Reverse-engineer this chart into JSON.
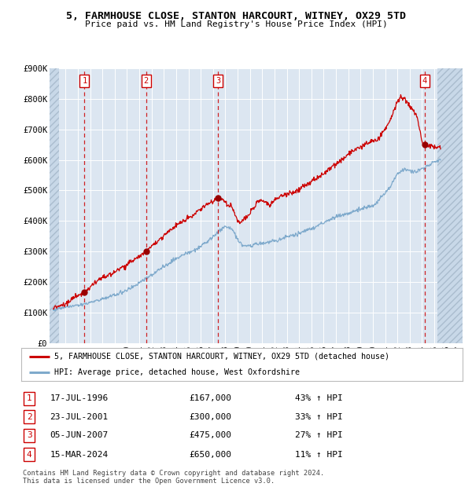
{
  "title": "5, FARMHOUSE CLOSE, STANTON HARCOURT, WITNEY, OX29 5TD",
  "subtitle": "Price paid vs. HM Land Registry's House Price Index (HPI)",
  "sale_prices": [
    167000,
    300000,
    475000,
    650000
  ],
  "sale_labels": [
    "1",
    "2",
    "3",
    "4"
  ],
  "sale_pct": [
    "43% ↑ HPI",
    "33% ↑ HPI",
    "27% ↑ HPI",
    "11% ↑ HPI"
  ],
  "sale_dates_str": [
    "17-JUL-1996",
    "23-JUL-2001",
    "05-JUN-2007",
    "15-MAR-2024"
  ],
  "sale_prices_str": [
    "£167,000",
    "£300,000",
    "£475,000",
    "£650,000"
  ],
  "red_line_color": "#cc0000",
  "blue_line_color": "#7faacc",
  "plot_bg_color": "#dce6f1",
  "grid_color": "#ffffff",
  "dashed_line_color": "#cc0000",
  "marker_color": "#990000",
  "ylim": [
    0,
    900000
  ],
  "yticks": [
    0,
    100000,
    200000,
    300000,
    400000,
    500000,
    600000,
    700000,
    800000,
    900000
  ],
  "ytick_labels": [
    "£0",
    "£100K",
    "£200K",
    "£300K",
    "£400K",
    "£500K",
    "£600K",
    "£700K",
    "£800K",
    "£900K"
  ],
  "xlim_start": 1993.7,
  "xlim_end": 2027.3,
  "sale_year_floats": [
    1996.542,
    2001.558,
    2007.422,
    2024.208
  ],
  "footer_line1": "Contains HM Land Registry data © Crown copyright and database right 2024.",
  "footer_line2": "This data is licensed under the Open Government Licence v3.0.",
  "legend_label1": "5, FARMHOUSE CLOSE, STANTON HARCOURT, WITNEY, OX29 5TD (detached house)",
  "legend_label2": "HPI: Average price, detached house, West Oxfordshire"
}
